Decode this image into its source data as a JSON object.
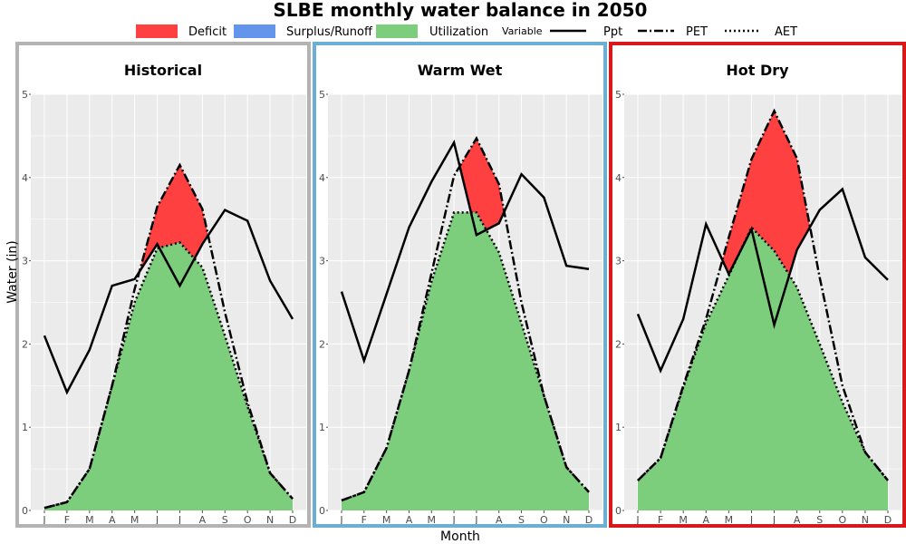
{
  "chart_data": {
    "type": "area",
    "title": "SLBE monthly water balance in 2050",
    "xlabel": "Month",
    "ylabel": "Water (in)",
    "ylim": [
      0,
      5
    ],
    "yticks": [
      0,
      1,
      2,
      3,
      4,
      5
    ],
    "categories": [
      "J",
      "F",
      "M",
      "A",
      "M",
      "J",
      "J",
      "A",
      "S",
      "O",
      "N",
      "D"
    ],
    "legend": {
      "placement": "top",
      "fill_items": [
        {
          "label": "Deficit",
          "color": "#ff4040"
        },
        {
          "label": "Surplus/Runoff",
          "color": "#6495ed"
        },
        {
          "label": "Utilization",
          "color": "#7ccd7c"
        }
      ],
      "line_title": "Variable",
      "line_items": [
        {
          "label": "Ppt",
          "style": "solid"
        },
        {
          "label": "PET",
          "style": "dashdot"
        },
        {
          "label": "AET",
          "style": "dotted"
        }
      ]
    },
    "grid": true,
    "panels": [
      {
        "name": "Historical",
        "border_color": "#b3b3b3",
        "series": [
          {
            "name": "Ppt",
            "values": [
              2.1,
              1.42,
              1.93,
              2.7,
              2.78,
              3.2,
              2.7,
              3.2,
              3.61,
              3.48,
              2.76,
              2.3
            ]
          },
          {
            "name": "PET",
            "values": [
              0.03,
              0.1,
              0.5,
              1.5,
              2.66,
              3.65,
              4.15,
              3.62,
              2.38,
              1.3,
              0.45,
              0.14
            ]
          },
          {
            "name": "AET",
            "values": [
              0.03,
              0.1,
              0.5,
              1.5,
              2.5,
              3.15,
              3.22,
              2.92,
              2.1,
              1.25,
              0.45,
              0.14
            ]
          }
        ]
      },
      {
        "name": "Warm Wet",
        "border_color": "#6baed6",
        "series": [
          {
            "name": "Ppt",
            "values": [
              2.63,
              1.8,
              2.6,
              3.4,
              3.95,
              4.42,
              3.31,
              3.45,
              4.04,
              3.76,
              2.94,
              2.9
            ]
          },
          {
            "name": "PET",
            "values": [
              0.12,
              0.22,
              0.75,
              1.68,
              2.85,
              4.02,
              4.47,
              3.92,
              2.5,
              1.38,
              0.52,
              0.22
            ]
          },
          {
            "name": "AET",
            "values": [
              0.12,
              0.22,
              0.75,
              1.68,
              2.75,
              3.58,
              3.58,
              3.1,
              2.25,
              1.38,
              0.52,
              0.22
            ]
          }
        ]
      },
      {
        "name": "Hot Dry",
        "border_color": "#d7191c",
        "series": [
          {
            "name": "Ppt",
            "values": [
              2.36,
              1.68,
              2.3,
              3.44,
              2.84,
              3.38,
              2.23,
              3.13,
              3.61,
              3.86,
              3.04,
              2.77
            ]
          },
          {
            "name": "PET",
            "values": [
              0.36,
              0.63,
              1.5,
              2.3,
              3.28,
              4.22,
              4.8,
              4.23,
              2.8,
              1.5,
              0.7,
              0.36
            ]
          },
          {
            "name": "AET",
            "values": [
              0.36,
              0.63,
              1.48,
              2.25,
              2.82,
              3.4,
              3.12,
              2.68,
              2.0,
              1.3,
              0.7,
              0.36
            ]
          }
        ]
      }
    ]
  }
}
